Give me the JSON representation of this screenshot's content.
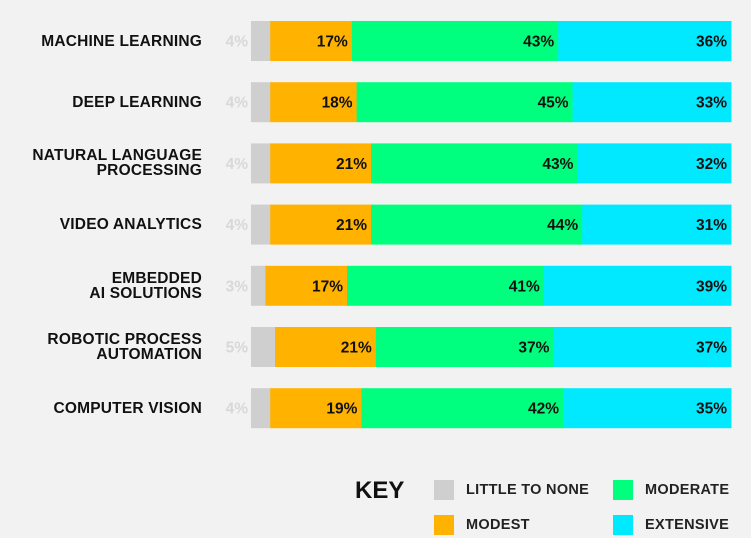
{
  "chart_data": {
    "type": "bar",
    "orientation": "horizontal",
    "stacked": true,
    "normalized_percent": true,
    "categories": [
      [
        "MACHINE LEARNING"
      ],
      [
        "DEEP LEARNING"
      ],
      [
        "NATURAL LANGUAGE",
        "PROCESSING"
      ],
      [
        "VIDEO ANALYTICS"
      ],
      [
        "EMBEDDED",
        "AI SOLUTIONS"
      ],
      [
        "ROBOTIC PROCESS",
        "AUTOMATION"
      ],
      [
        "COMPUTER VISION"
      ]
    ],
    "series": [
      {
        "name": "LITTLE TO NONE",
        "color": "#cfcfcf",
        "label_color": "#d8d8d8",
        "labels_outside": true,
        "values": [
          4,
          4,
          4,
          4,
          3,
          5,
          4
        ]
      },
      {
        "name": "MODEST",
        "color": "#ffb300",
        "label_color": "#111111",
        "values": [
          17,
          18,
          21,
          21,
          17,
          21,
          19
        ]
      },
      {
        "name": "MODERATE",
        "color": "#00ff7f",
        "label_color": "#111111",
        "values": [
          43,
          45,
          43,
          44,
          41,
          37,
          42
        ]
      },
      {
        "name": "EXTENSIVE",
        "color": "#00e9ff",
        "label_color": "#111111",
        "values": [
          36,
          33,
          32,
          31,
          39,
          37,
          35
        ]
      }
    ],
    "value_suffix": "%",
    "legend_title": "KEY",
    "legend_position": "bottom-right"
  }
}
